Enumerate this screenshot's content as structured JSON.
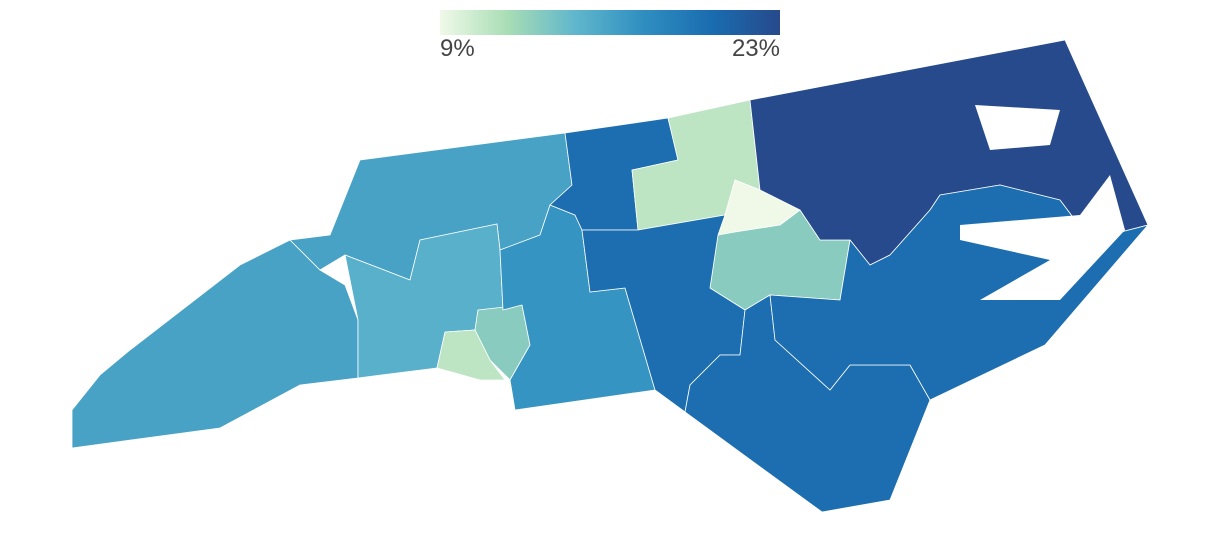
{
  "chart_data": {
    "type": "choropleth",
    "values": [
      16,
      16,
      15,
      13,
      11,
      17,
      20,
      11,
      9,
      13,
      20,
      20,
      23,
      20
    ],
    "colorscale": [
      "#f0f9e8",
      "#a8ddb5",
      "#5fb6cc",
      "#2f8ec0",
      "#1a6cb0",
      "#264a8c"
    ],
    "colorlim": [
      9,
      23
    ],
    "colorticks": [
      {
        "value": 9,
        "label": "9%"
      },
      {
        "value": 23,
        "label": "23%"
      }
    ]
  }
}
